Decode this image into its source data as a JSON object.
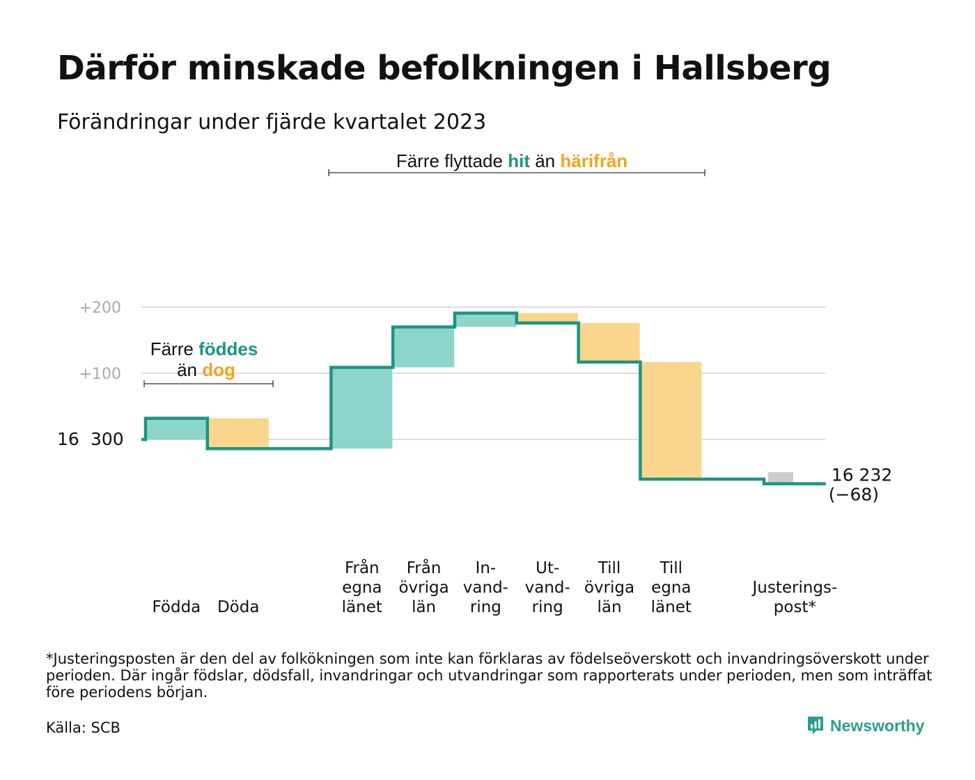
{
  "title": "Därför minskade befolkningen i Hallsberg",
  "subtitle": "Förändringar under fjärde kvartalet 2023",
  "footnote": "*Justeringsposten är den del av folkökningen som inte kan förklaras av födelseöverskott och invandringsöverskott under perioden. Där ingår födslar, dödsfall, invandringar och utvandringar som rapporterats under perioden, men som inträffat före periodens början.",
  "source": "Källa: SCB",
  "brand": {
    "name": "Newsworthy",
    "icon": "newsworthy-logo-icon"
  },
  "colors": {
    "increase": "#8dd5cb",
    "decrease": "#f9d68c",
    "adjustment": "#cccccc",
    "line": "#1a9585",
    "accent_teal": "#1a9585",
    "accent_orange": "#f4a21f",
    "grid": "#dddddd"
  },
  "annotations": {
    "births": {
      "line1_prefix": "Färre",
      "line1_highlight": "föddes",
      "line2_prefix": "än",
      "line2_highlight": "dog"
    },
    "migration": {
      "prefix": "Färre flyttade",
      "highlight1": "hit",
      "middle": "än",
      "highlight2": "härifrån"
    }
  },
  "chart_data": {
    "type": "waterfall",
    "title": "Därför minskade befolkningen i Hallsberg",
    "subtitle": "Förändringar under fjärde kvartalet 2023",
    "start_value": 16300,
    "start_label_parts": [
      "16",
      "300"
    ],
    "y_ticks": [
      {
        "offset": 200,
        "label": "+200"
      },
      {
        "offset": 100,
        "label": "+100"
      },
      {
        "offset": 0,
        "label": ""
      }
    ],
    "ylim": [
      -78,
      205
    ],
    "grid": true,
    "steps": [
      {
        "label_lines": [
          "Födda"
        ],
        "change": 32,
        "kind": "increase"
      },
      {
        "label_lines": [
          "Döda"
        ],
        "change": -46,
        "kind": "decrease"
      },
      {
        "label_lines": [],
        "change": 0,
        "kind": "gap"
      },
      {
        "label_lines": [
          "Från",
          "egna",
          "länet"
        ],
        "change": 123,
        "kind": "increase"
      },
      {
        "label_lines": [
          "Från",
          "övriga",
          "län"
        ],
        "change": 61,
        "kind": "increase"
      },
      {
        "label_lines": [
          "In-",
          "vand-",
          "ring"
        ],
        "change": 21,
        "kind": "increase"
      },
      {
        "label_lines": [
          "Ut-",
          "vand-",
          "ring"
        ],
        "change": -15,
        "kind": "decrease"
      },
      {
        "label_lines": [
          "Till",
          "övriga",
          "län"
        ],
        "change": -59,
        "kind": "decrease"
      },
      {
        "label_lines": [
          "Till",
          "egna",
          "länet"
        ],
        "change": -177,
        "kind": "decrease"
      },
      {
        "label_lines": [],
        "change": 0,
        "kind": "gap"
      },
      {
        "label_lines": [
          "Justerings-",
          "post*"
        ],
        "change": -7,
        "kind": "adjustment"
      }
    ],
    "end_value": 16232,
    "end_label": "16 232",
    "end_change_label": "(−68)"
  }
}
